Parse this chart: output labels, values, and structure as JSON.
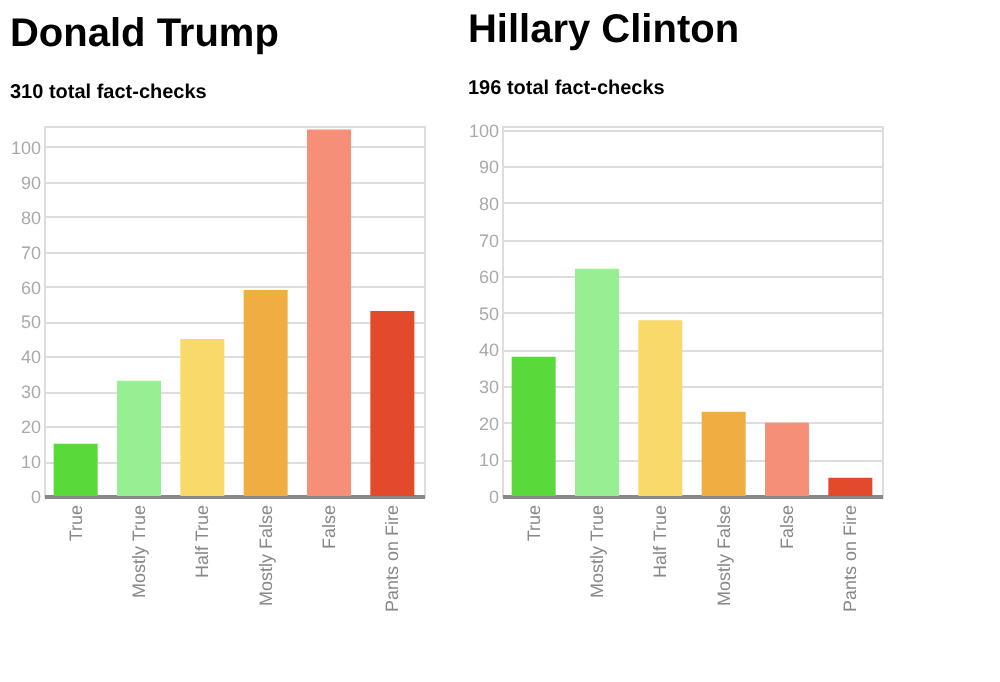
{
  "chart_data": [
    {
      "type": "bar",
      "title": "Donald Trump",
      "subtitle": "310 total fact-checks",
      "categories": [
        "True",
        "Mostly True",
        "Half True",
        "Mostly False",
        "False",
        "Pants on Fire"
      ],
      "values": [
        15,
        33,
        45,
        59,
        105,
        53
      ],
      "colors": [
        "#5ad93a",
        "#98ef92",
        "#f9d96a",
        "#f0ae42",
        "#f68f78",
        "#e34a2c"
      ],
      "ylim": [
        0,
        106
      ],
      "yticks": [
        0,
        10,
        20,
        30,
        40,
        50,
        60,
        70,
        80,
        90,
        100
      ],
      "grid": "y",
      "legend": false
    },
    {
      "type": "bar",
      "title": "Hillary Clinton",
      "subtitle": "196 total fact-checks",
      "categories": [
        "True",
        "Mostly True",
        "Half True",
        "Mostly False",
        "False",
        "Pants on Fire"
      ],
      "values": [
        38,
        62,
        48,
        23,
        20,
        5
      ],
      "colors": [
        "#5ad93a",
        "#98ef92",
        "#f9d96a",
        "#f0ae42",
        "#f68f78",
        "#e34a2c"
      ],
      "ylim": [
        0,
        101
      ],
      "yticks": [
        0,
        10,
        20,
        30,
        40,
        50,
        60,
        70,
        80,
        90,
        100
      ],
      "grid": "y",
      "legend": false
    }
  ]
}
